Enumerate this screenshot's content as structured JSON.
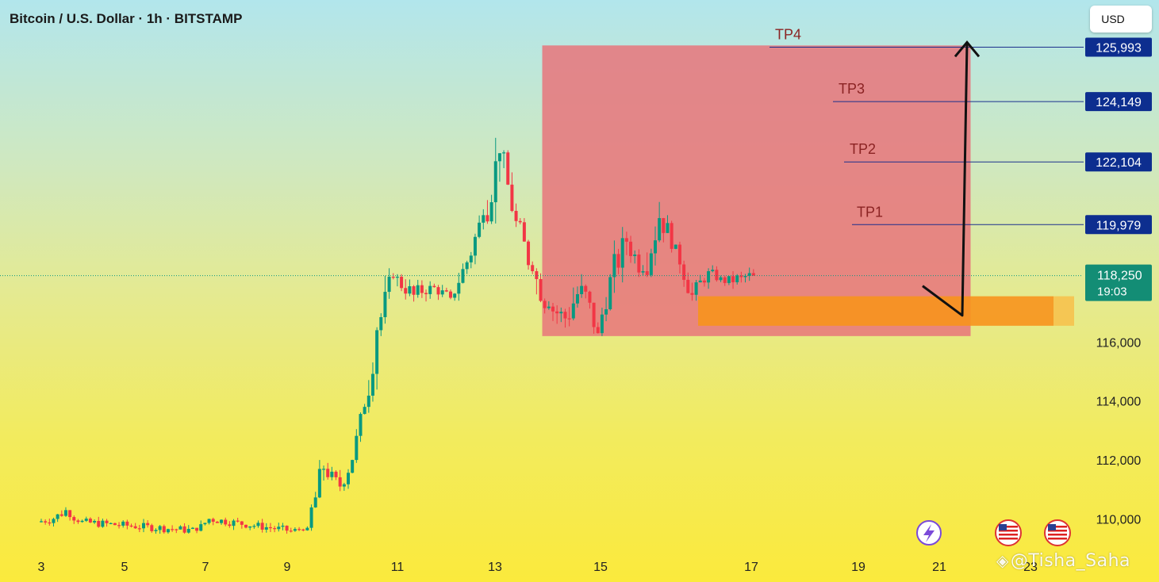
{
  "header": {
    "title": "Bitcoin / U.S. Dollar · 1h · BITSTAMP",
    "currency_label": "USD"
  },
  "watermark": "@Tisha_Saha",
  "colors": {
    "up": "#089981",
    "down": "#f23645",
    "target_zone": "#e8747b",
    "entry_zone": "#f7941d",
    "level_line": "#1b2f8c",
    "tag_bg": "#0d2e8f",
    "price_tag_bg": "#138d75",
    "tp_label": "#8b2323",
    "arrow": "#111111"
  },
  "icons": [
    "lightning-event-icon",
    "us-flag-icon",
    "us-flag-icon"
  ],
  "chart_data": {
    "type": "candlestick",
    "symbol": "Bitcoin / U.S. Dollar",
    "interval": "1h",
    "exchange": "BITSTAMP",
    "x_tick_labels": [
      "3",
      "5",
      "7",
      "9",
      "11",
      "13",
      "15",
      "17",
      "19",
      "21",
      "23"
    ],
    "y_tick_labels": [
      "110,000",
      "112,000",
      "114,000",
      "116,000"
    ],
    "ylim": [
      109000,
      127300
    ],
    "current_price": {
      "value": 118250,
      "label": "118,250",
      "countdown": "19:03"
    },
    "take_profits": [
      {
        "name": "TP1",
        "price": 119979,
        "label": "119,979"
      },
      {
        "name": "TP2",
        "price": 122104,
        "label": "122,104"
      },
      {
        "name": "TP3",
        "price": 124149,
        "label": "124,149"
      },
      {
        "name": "TP4",
        "price": 125993,
        "label": "125,993"
      }
    ],
    "target_zone": {
      "from_date": 15.2,
      "to_date": 22.8,
      "low": 116200,
      "high": 126000
    },
    "entry_zone": {
      "from_date": 16.5,
      "to_date": 23.2,
      "low": 116550,
      "high": 117550
    },
    "projection_path": [
      {
        "date": 20.8,
        "price": 117900
      },
      {
        "date": 22.2,
        "price": 116900
      },
      {
        "date": 22.3,
        "price": 126000
      }
    ],
    "candles_summary": [
      {
        "date": 3.0,
        "open": 109900,
        "high": 110200,
        "low": 109600,
        "close": 110000
      },
      {
        "date": 3.4,
        "open": 110000,
        "high": 110500,
        "low": 109700,
        "close": 110300
      },
      {
        "date": 3.7,
        "open": 110300,
        "high": 110300,
        "low": 109800,
        "close": 109900
      },
      {
        "date": 4.0,
        "open": 109900,
        "high": 110100,
        "low": 109500,
        "close": 109600
      },
      {
        "date": 6.9,
        "open": 109600,
        "high": 110100,
        "low": 109500,
        "close": 110000
      },
      {
        "date": 7.2,
        "open": 110000,
        "high": 110100,
        "low": 109500,
        "close": 109600
      },
      {
        "date": 9.2,
        "open": 109600,
        "high": 109800,
        "low": 109500,
        "close": 109700
      },
      {
        "date": 9.6,
        "open": 109700,
        "high": 112000,
        "low": 109600,
        "close": 111700
      },
      {
        "date": 10.0,
        "open": 111700,
        "high": 111900,
        "low": 110800,
        "close": 111100
      },
      {
        "date": 10.4,
        "open": 111100,
        "high": 112100,
        "low": 110900,
        "close": 112000
      },
      {
        "date": 10.7,
        "open": 112000,
        "high": 113900,
        "low": 111900,
        "close": 113800
      },
      {
        "date": 11.0,
        "open": 113800,
        "high": 116500,
        "low": 113600,
        "close": 116400
      },
      {
        "date": 11.3,
        "open": 116400,
        "high": 118500,
        "low": 116200,
        "close": 118200
      },
      {
        "date": 11.7,
        "open": 118200,
        "high": 118300,
        "low": 117000,
        "close": 117600
      },
      {
        "date": 12.2,
        "open": 117600,
        "high": 118300,
        "low": 117100,
        "close": 117900
      },
      {
        "date": 12.6,
        "open": 117900,
        "high": 118100,
        "low": 117300,
        "close": 117500
      },
      {
        "date": 13.1,
        "open": 117500,
        "high": 118800,
        "low": 117400,
        "close": 118700
      },
      {
        "date": 13.5,
        "open": 118700,
        "high": 120500,
        "low": 118500,
        "close": 120300
      },
      {
        "date": 13.9,
        "open": 120300,
        "high": 123300,
        "low": 120000,
        "close": 122400
      },
      {
        "date": 14.3,
        "open": 122400,
        "high": 122500,
        "low": 119800,
        "close": 120100
      },
      {
        "date": 14.7,
        "open": 120100,
        "high": 120200,
        "low": 118300,
        "close": 118400
      },
      {
        "date": 15.1,
        "open": 118400,
        "high": 118500,
        "low": 116300,
        "close": 117200
      },
      {
        "date": 15.5,
        "open": 117200,
        "high": 117900,
        "low": 116300,
        "close": 116800
      },
      {
        "date": 15.9,
        "open": 116800,
        "high": 118300,
        "low": 115800,
        "close": 117900
      },
      {
        "date": 16.3,
        "open": 117900,
        "high": 118000,
        "low": 116000,
        "close": 116300
      },
      {
        "date": 16.7,
        "open": 116300,
        "high": 118300,
        "low": 116200,
        "close": 118200
      },
      {
        "date": 17.0,
        "open": 118200,
        "high": 119900,
        "low": 117600,
        "close": 119400
      },
      {
        "date": 17.4,
        "open": 119400,
        "high": 119600,
        "low": 118000,
        "close": 118400
      },
      {
        "date": 17.8,
        "open": 118400,
        "high": 120800,
        "low": 118200,
        "close": 120200
      },
      {
        "date": 18.2,
        "open": 120200,
        "high": 120300,
        "low": 118600,
        "close": 119300
      },
      {
        "date": 18.6,
        "open": 119300,
        "high": 119400,
        "low": 117400,
        "close": 117600
      },
      {
        "date": 19.0,
        "open": 117600,
        "high": 118500,
        "low": 117400,
        "close": 118400
      },
      {
        "date": 19.4,
        "open": 118400,
        "high": 118600,
        "low": 117900,
        "close": 118000
      },
      {
        "date": 19.8,
        "open": 118000,
        "high": 118400,
        "low": 117500,
        "close": 118200
      },
      {
        "date": 20.2,
        "open": 118200,
        "high": 118700,
        "low": 117800,
        "close": 118250
      }
    ]
  }
}
